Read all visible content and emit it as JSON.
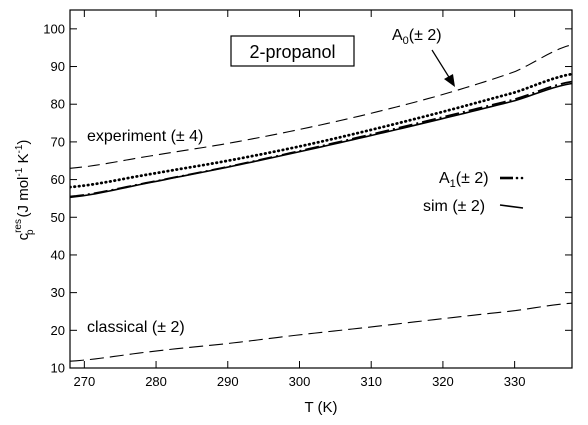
{
  "chart_data": {
    "type": "line",
    "title": "2-propanol",
    "xlabel": "T (K)",
    "ylabel": "c_p^res (J mol^-1 K^-1)",
    "ylabel_parts": {
      "base": "c",
      "sub": "p",
      "sup": "res",
      "unit": "(J mol",
      "exp1": "-1",
      "mid": " K",
      "exp2": "-1",
      "end": ")"
    },
    "xlim": [
      268,
      338
    ],
    "ylim": [
      10,
      105
    ],
    "x_ticks": [
      270,
      280,
      290,
      300,
      310,
      320,
      330
    ],
    "y_ticks": [
      10,
      20,
      30,
      40,
      50,
      60,
      70,
      80,
      90,
      100
    ],
    "grid": false,
    "series": [
      {
        "name": "A0(± 2)",
        "style": "dashed-long",
        "x": [
          268,
          280,
          290,
          300,
          310,
          320,
          330,
          338
        ],
        "y": [
          63.0,
          66.5,
          69.6,
          73.3,
          77.6,
          82.6,
          88.6,
          95.8
        ]
      },
      {
        "name": "A1(± 2)",
        "style": "dash-dot",
        "x": [
          268,
          280,
          290,
          300,
          310,
          320,
          330,
          338
        ],
        "y": [
          55.5,
          59.6,
          63.4,
          67.6,
          72.0,
          76.6,
          81.3,
          86.0
        ]
      },
      {
        "name": "experiment (± 4)",
        "style": "dotted",
        "x": [
          268,
          280,
          290,
          300,
          310,
          320,
          330,
          338
        ],
        "y": [
          58.0,
          61.7,
          65.0,
          68.8,
          73.2,
          78.0,
          83.1,
          88.0
        ]
      },
      {
        "name": "sim (± 2)",
        "style": "solid",
        "x": [
          268,
          280,
          290,
          300,
          310,
          320,
          330,
          338
        ],
        "y": [
          55.3,
          59.5,
          63.3,
          67.4,
          71.7,
          76.2,
          80.9,
          85.5
        ]
      },
      {
        "name": "classical (± 2)",
        "style": "dashed",
        "x": [
          268,
          280,
          290,
          300,
          310,
          320,
          330,
          338
        ],
        "y": [
          11.8,
          14.5,
          16.5,
          18.8,
          20.9,
          23.1,
          25.2,
          27.2
        ]
      }
    ],
    "annotations": {
      "a0": {
        "base": "A",
        "sub": "0",
        "rest": "(± 2)"
      },
      "a1": {
        "base": "A",
        "sub": "1",
        "rest": "(± 2)"
      },
      "experiment": "experiment (± 4)",
      "sim": "sim (± 2)",
      "classical": "classical (± 2)"
    }
  }
}
